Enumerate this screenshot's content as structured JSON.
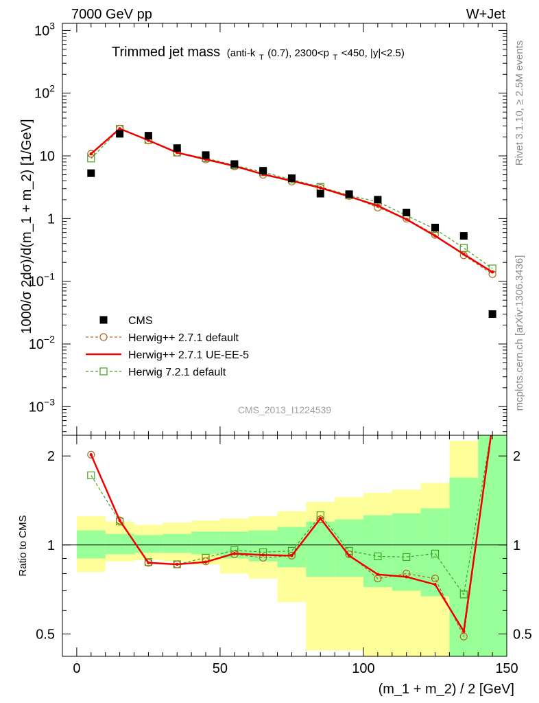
{
  "header": {
    "left": "7000 GeV pp",
    "right": "W+Jet"
  },
  "side_labels": {
    "rivet": "Rivet 3.1.10, ≥ 2.5M events",
    "mcplots": "mcplots.cern.ch [arXiv:1306.3436]"
  },
  "watermark": "CMS_2013_I1224539",
  "chart_data": [
    {
      "type": "scatter",
      "title": "Trimmed jet mass",
      "subtitle_parts": [
        "(anti-k",
        "T",
        "(0.7), 2300<p",
        "T",
        "<450, |y|<2.5)"
      ],
      "ylabel": "1000/σ 2dσ)/d(m_1 + m_2) [1/GeV]",
      "yscale": "log",
      "xlim": [
        -5,
        150
      ],
      "ylim": [
        0.00035,
        1300
      ],
      "y_ticks": [
        {
          "value": 1000,
          "base": "10",
          "exp": "3"
        },
        {
          "value": 100,
          "base": "10",
          "exp": "2"
        },
        {
          "value": 10,
          "base": "10",
          "exp": ""
        },
        {
          "value": 1,
          "base": "1",
          "exp": ""
        },
        {
          "value": 0.1,
          "base": "10",
          "exp": "−1"
        },
        {
          "value": 0.01,
          "base": "10",
          "exp": "−2"
        },
        {
          "value": 0.001,
          "base": "10",
          "exp": "−3"
        }
      ],
      "x": [
        5,
        15,
        25,
        35,
        45,
        55,
        65,
        75,
        85,
        95,
        105,
        115,
        125,
        135,
        145
      ],
      "series": [
        {
          "name": "CMS",
          "style": "data",
          "color": "#000000",
          "values": [
            5.3,
            22.5,
            21,
            13.3,
            10.3,
            7.4,
            5.8,
            4.4,
            2.5,
            2.45,
            2.0,
            1.25,
            0.72,
            0.53,
            0.03
          ]
        },
        {
          "name": "Herwig++ 2.7.1 default",
          "style": "circle-dashed",
          "color": "#b5651d",
          "values": [
            10.8,
            27.2,
            17.7,
            11.3,
            8.8,
            6.8,
            5.0,
            3.9,
            3.1,
            2.3,
            1.5,
            1.0,
            0.55,
            0.26,
            0.13
          ]
        },
        {
          "name": "Herwig++ 2.7.1 UE-EE-5",
          "style": "solid",
          "color": "#ee0000",
          "values": [
            10.8,
            27.2,
            17.7,
            11.3,
            8.8,
            6.9,
            5.1,
            4.0,
            3.1,
            2.25,
            1.6,
            0.97,
            0.53,
            0.27,
            0.14
          ]
        },
        {
          "name": "Herwig 7.2.1 default",
          "style": "square-dashed",
          "color": "#44a01e",
          "values": [
            9.1,
            27.0,
            17.9,
            11.3,
            9.2,
            7.1,
            5.5,
            4.2,
            3.2,
            2.35,
            1.85,
            1.12,
            0.68,
            0.34,
            0.16
          ]
        }
      ],
      "legend_position": "bottom-left"
    },
    {
      "type": "scatter",
      "ylabel": "Ratio to CMS",
      "xlabel": "(m_1 + m_2) / 2 [GeV]",
      "yscale": "log",
      "xlim": [
        -5,
        150
      ],
      "ylim": [
        0.42,
        2.35
      ],
      "y_ticks": [
        0.5,
        1,
        2
      ],
      "x_ticks": [
        0,
        50,
        100,
        150
      ],
      "bins": [
        [
          0,
          10
        ],
        [
          10,
          20
        ],
        [
          20,
          30
        ],
        [
          30,
          40
        ],
        [
          40,
          50
        ],
        [
          50,
          60
        ],
        [
          60,
          70
        ],
        [
          70,
          80
        ],
        [
          80,
          90
        ],
        [
          90,
          100
        ],
        [
          100,
          110
        ],
        [
          110,
          120
        ],
        [
          120,
          130
        ],
        [
          130,
          140
        ],
        [
          140,
          150
        ]
      ],
      "yellow_band": [
        [
          0.81,
          1.25
        ],
        [
          0.88,
          1.2
        ],
        [
          0.89,
          1.17
        ],
        [
          0.88,
          1.19
        ],
        [
          0.86,
          1.21
        ],
        [
          0.8,
          1.23
        ],
        [
          0.77,
          1.25
        ],
        [
          0.64,
          1.3
        ],
        [
          0.44,
          1.4
        ],
        [
          0.44,
          1.45
        ],
        [
          0.41,
          1.5
        ],
        [
          0.35,
          1.54
        ],
        [
          0.35,
          1.62
        ],
        [
          0.35,
          2.25
        ],
        [
          0.35,
          2.35
        ]
      ],
      "green_band": [
        [
          0.9,
          1.12
        ],
        [
          0.93,
          1.09
        ],
        [
          0.94,
          1.08
        ],
        [
          0.94,
          1.09
        ],
        [
          0.93,
          1.11
        ],
        [
          0.9,
          1.11
        ],
        [
          0.88,
          1.12
        ],
        [
          0.84,
          1.15
        ],
        [
          0.78,
          1.2
        ],
        [
          0.78,
          1.22
        ],
        [
          0.72,
          1.26
        ],
        [
          0.7,
          1.28
        ],
        [
          0.67,
          1.33
        ],
        [
          0.39,
          1.69
        ],
        [
          0.39,
          2.35
        ]
      ],
      "series": [
        {
          "name": "Herwig++ 2.7.1 default",
          "style": "circle-dashed",
          "color": "#b5651d",
          "values": [
            2.02,
            1.21,
            0.87,
            0.86,
            0.88,
            0.93,
            0.905,
            0.92,
            1.22,
            0.93,
            0.77,
            0.8,
            0.77,
            0.49,
            2.55
          ]
        },
        {
          "name": "Herwig++ 2.7.1 UE-EE-5",
          "style": "solid",
          "color": "#ee0000",
          "values": [
            2.02,
            1.21,
            0.87,
            0.86,
            0.875,
            0.935,
            0.925,
            0.92,
            1.23,
            0.92,
            0.795,
            0.78,
            0.735,
            0.51,
            2.55
          ]
        },
        {
          "name": "Herwig 7.2.1 default",
          "style": "square-dashed",
          "color": "#44a01e",
          "values": [
            1.72,
            1.2,
            0.875,
            0.86,
            0.905,
            0.96,
            0.945,
            0.955,
            1.26,
            0.955,
            0.915,
            0.91,
            0.935,
            0.68,
            2.55
          ]
        }
      ]
    }
  ]
}
